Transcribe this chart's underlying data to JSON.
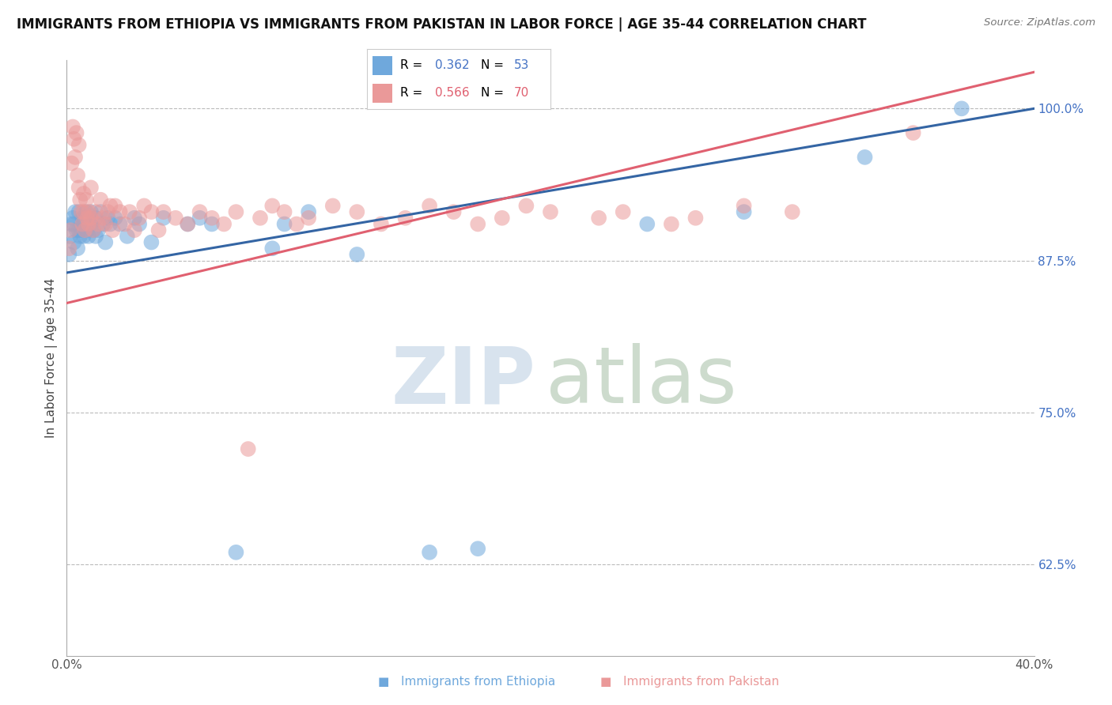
{
  "title": "IMMIGRANTS FROM ETHIOPIA VS IMMIGRANTS FROM PAKISTAN IN LABOR FORCE | AGE 35-44 CORRELATION CHART",
  "source": "Source: ZipAtlas.com",
  "ylabel": "In Labor Force | Age 35-44",
  "y_ticks": [
    62.5,
    75.0,
    87.5,
    100.0
  ],
  "y_tick_labels": [
    "62.5%",
    "75.0%",
    "87.5%",
    "100.0%"
  ],
  "x_min": 0.0,
  "x_max": 40.0,
  "y_min": 55.0,
  "y_max": 104.0,
  "ethiopia_color": "#6fa8dc",
  "pakistan_color": "#ea9999",
  "ethiopia_R": 0.362,
  "ethiopia_N": 53,
  "pakistan_R": 0.566,
  "pakistan_N": 70,
  "ethiopia_line_color": "#3465a4",
  "pakistan_line_color": "#e06070",
  "ethiopia_legend_color": "#4472c4",
  "pakistan_legend_color": "#e06070",
  "ethiopia_x": [
    0.1,
    0.15,
    0.2,
    0.25,
    0.3,
    0.3,
    0.35,
    0.4,
    0.45,
    0.5,
    0.5,
    0.55,
    0.6,
    0.65,
    0.7,
    0.7,
    0.75,
    0.8,
    0.85,
    0.9,
    0.9,
    1.0,
    1.0,
    1.1,
    1.2,
    1.2,
    1.3,
    1.4,
    1.5,
    1.6,
    1.7,
    1.8,
    2.0,
    2.2,
    2.5,
    2.8,
    3.0,
    3.5,
    4.0,
    5.0,
    5.5,
    6.0,
    7.0,
    8.5,
    9.0,
    10.0,
    12.0,
    15.0,
    17.0,
    24.0,
    28.0,
    33.0,
    37.0
  ],
  "ethiopia_y": [
    88.0,
    89.5,
    90.5,
    91.0,
    89.0,
    90.5,
    91.5,
    90.0,
    88.5,
    90.0,
    91.5,
    89.5,
    90.0,
    91.0,
    89.5,
    91.0,
    90.5,
    91.5,
    90.0,
    89.5,
    91.0,
    90.5,
    91.5,
    90.0,
    89.5,
    91.0,
    90.0,
    91.5,
    90.5,
    89.0,
    91.0,
    90.5,
    91.0,
    90.5,
    89.5,
    91.0,
    90.5,
    89.0,
    91.0,
    90.5,
    91.0,
    90.5,
    63.5,
    88.5,
    90.5,
    91.5,
    88.0,
    63.5,
    63.8,
    90.5,
    91.5,
    96.0,
    100.0
  ],
  "pakistan_x": [
    0.1,
    0.15,
    0.2,
    0.25,
    0.3,
    0.35,
    0.4,
    0.45,
    0.5,
    0.5,
    0.55,
    0.6,
    0.65,
    0.7,
    0.7,
    0.75,
    0.8,
    0.85,
    0.9,
    0.9,
    1.0,
    1.0,
    1.1,
    1.2,
    1.3,
    1.4,
    1.5,
    1.6,
    1.7,
    1.8,
    1.9,
    2.0,
    2.2,
    2.4,
    2.6,
    2.8,
    3.0,
    3.2,
    3.5,
    3.8,
    4.0,
    4.5,
    5.0,
    5.5,
    6.0,
    6.5,
    7.0,
    7.5,
    8.0,
    8.5,
    9.0,
    9.5,
    10.0,
    11.0,
    12.0,
    13.0,
    14.0,
    15.0,
    16.0,
    17.0,
    18.0,
    19.0,
    20.0,
    22.0,
    23.0,
    25.0,
    26.0,
    28.0,
    30.0,
    35.0
  ],
  "pakistan_y": [
    88.5,
    90.0,
    95.5,
    98.5,
    97.5,
    96.0,
    98.0,
    94.5,
    93.5,
    97.0,
    92.5,
    91.5,
    90.5,
    91.5,
    93.0,
    90.0,
    92.5,
    91.0,
    90.5,
    91.5,
    91.0,
    93.5,
    90.0,
    91.5,
    90.5,
    92.5,
    91.0,
    90.5,
    91.5,
    92.0,
    90.0,
    92.0,
    91.5,
    90.5,
    91.5,
    90.0,
    91.0,
    92.0,
    91.5,
    90.0,
    91.5,
    91.0,
    90.5,
    91.5,
    91.0,
    90.5,
    91.5,
    72.0,
    91.0,
    92.0,
    91.5,
    90.5,
    91.0,
    92.0,
    91.5,
    90.5,
    91.0,
    92.0,
    91.5,
    90.5,
    91.0,
    92.0,
    91.5,
    91.0,
    91.5,
    90.5,
    91.0,
    92.0,
    91.5,
    98.0
  ],
  "eth_line_x0": 0.0,
  "eth_line_y0": 86.5,
  "eth_line_x1": 40.0,
  "eth_line_y1": 100.0,
  "pak_line_x0": 0.0,
  "pak_line_y0": 84.0,
  "pak_line_x1": 40.0,
  "pak_line_y1": 103.0
}
